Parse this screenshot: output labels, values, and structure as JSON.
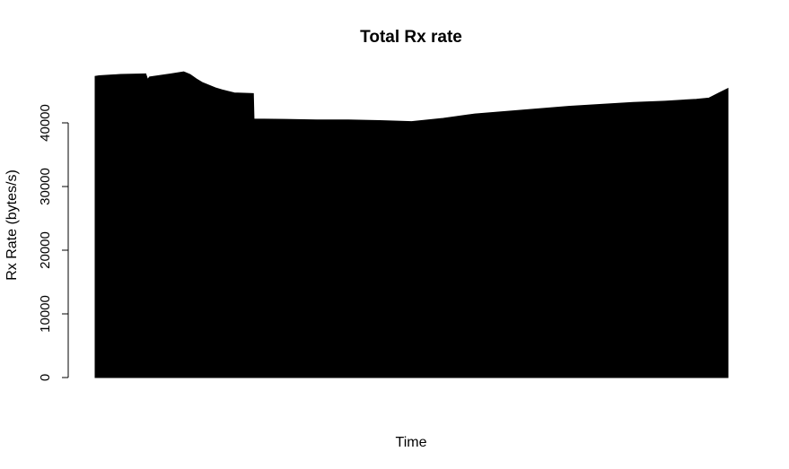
{
  "chart_data": {
    "type": "area",
    "title": "Total Rx rate",
    "xlabel": "Time",
    "ylabel": "Rx Rate (bytes/s)",
    "ylim": [
      0,
      46500
    ],
    "yticks": [
      0,
      10000,
      20000,
      30000,
      40000
    ],
    "ytick_labels": [
      "0",
      "10000",
      "20000",
      "30000",
      "40000"
    ],
    "xticks_shown": false,
    "grid": false,
    "legend": "none",
    "fill_color": "#000000",
    "series": [
      {
        "x": [
          0,
          0.6,
          4,
          8,
          8.3,
          8.6,
          12,
          14,
          15,
          16,
          17,
          18,
          19,
          20,
          22,
          25,
          25.1,
          30,
          35,
          40,
          45,
          50,
          55,
          60,
          65,
          70,
          75,
          80,
          85,
          90,
          95,
          97,
          98.6,
          100
        ],
        "y": [
          47300,
          47400,
          47600,
          47700,
          46800,
          47200,
          47700,
          48000,
          47600,
          46900,
          46300,
          45900,
          45500,
          45200,
          44700,
          44600,
          40600,
          40550,
          40450,
          40450,
          40350,
          40200,
          40700,
          41400,
          41800,
          42200,
          42600,
          42900,
          43200,
          43400,
          43700,
          43900,
          44700,
          45400
        ]
      }
    ]
  }
}
